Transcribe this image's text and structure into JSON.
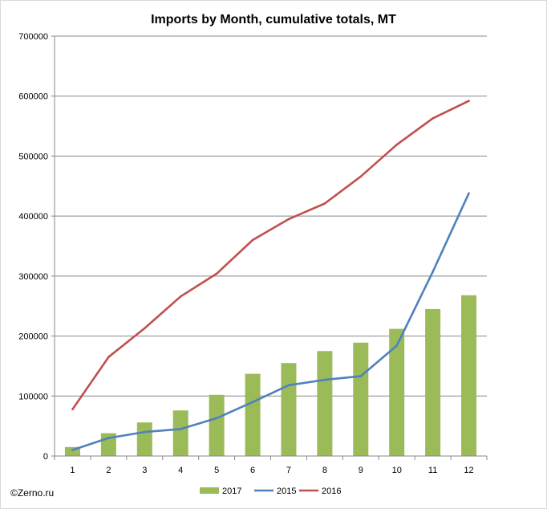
{
  "source_note": "©Zerno.ru",
  "chart_data": {
    "type": "bar",
    "title": "Imports by Month, cumulative totals, MT",
    "categories": [
      "1",
      "2",
      "3",
      "4",
      "5",
      "6",
      "7",
      "8",
      "9",
      "10",
      "11",
      "12"
    ],
    "ylim": [
      0,
      700000
    ],
    "yticks": [
      "0",
      "100000",
      "200000",
      "300000",
      "400000",
      "500000",
      "600000",
      "700000"
    ],
    "ytick_values": [
      0,
      100000,
      200000,
      300000,
      400000,
      500000,
      600000,
      700000
    ],
    "grid": true,
    "legend_position": "bottom",
    "series": [
      {
        "name": "2017",
        "type": "bar",
        "color": "#9BBB59",
        "values": [
          15000,
          38000,
          56000,
          76000,
          102000,
          137000,
          155000,
          175000,
          189000,
          212000,
          245000,
          268000
        ]
      },
      {
        "name": "2015",
        "type": "line",
        "color": "#4F81BD",
        "values": [
          10000,
          30000,
          40000,
          45000,
          63000,
          90000,
          118000,
          127000,
          133000,
          184000,
          307000,
          438000
        ]
      },
      {
        "name": "2016",
        "type": "line",
        "color": "#C0504D",
        "values": [
          78000,
          165000,
          213000,
          266000,
          304000,
          360000,
          395000,
          421000,
          466000,
          519000,
          563000,
          592000
        ]
      }
    ]
  }
}
